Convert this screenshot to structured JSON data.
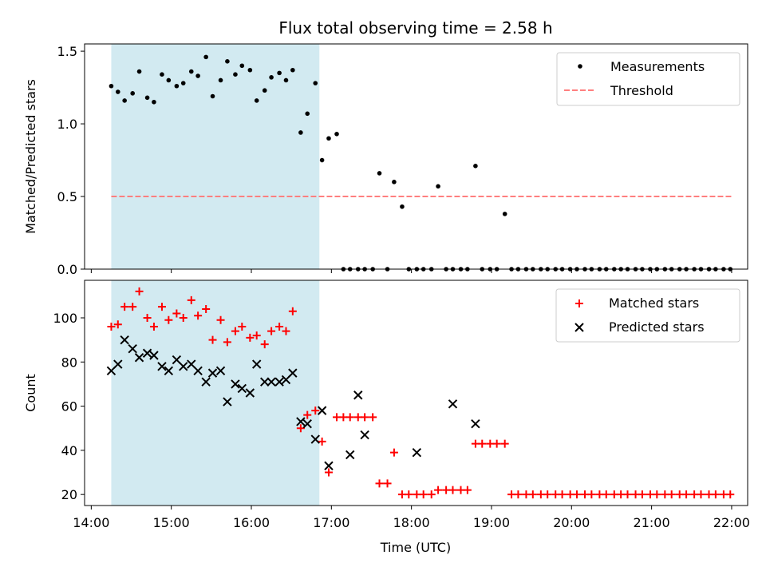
{
  "chart_data": {
    "title": "Flux total observing time = 2.58 h",
    "shaded_region": {
      "x": [
        "14:15",
        "16:51"
      ],
      "color": "#add8e6"
    },
    "xlabel": "Time (UTC)",
    "xlim": [
      "13:55",
      "22:12"
    ],
    "xticks": [
      "14:00",
      "15:00",
      "16:00",
      "17:00",
      "18:00",
      "19:00",
      "20:00",
      "21:00",
      "22:00"
    ],
    "top": {
      "type": "scatter",
      "ylabel": "Matched/Predicted stars",
      "ylim": [
        0,
        1.55
      ],
      "yticks": [
        "0.0",
        "0.5",
        "1.0",
        "1.5"
      ],
      "legend": {
        "placement": "top-right",
        "entries": [
          "Measurements",
          "Threshold"
        ]
      },
      "threshold": {
        "name": "Threshold",
        "y": 0.5,
        "x": [
          "14:15",
          "22:00"
        ],
        "color": "#ff7f7f"
      },
      "measurements": {
        "name": "Measurements",
        "color": "#000000",
        "x": [
          "14:15",
          "14:20",
          "14:25",
          "14:31",
          "14:36",
          "14:42",
          "14:47",
          "14:53",
          "14:58",
          "15:04",
          "15:09",
          "15:15",
          "15:20",
          "15:26",
          "15:31",
          "15:37",
          "15:42",
          "15:48",
          "15:53",
          "15:59",
          "16:04",
          "16:10",
          "16:15",
          "16:21",
          "16:26",
          "16:31",
          "16:37",
          "16:42",
          "16:48",
          "16:53",
          "16:58",
          "17:04",
          "17:09",
          "17:14",
          "17:20",
          "17:25",
          "17:31",
          "17:36",
          "17:42",
          "17:47",
          "17:53",
          "17:58",
          "18:04",
          "18:09",
          "18:15",
          "18:20",
          "18:26",
          "18:31",
          "18:37",
          "18:42",
          "18:48",
          "18:53",
          "18:59",
          "19:04",
          "19:10",
          "19:15",
          "19:20",
          "19:26",
          "19:31",
          "19:37",
          "19:42",
          "19:48",
          "19:53",
          "19:59",
          "20:04",
          "20:10",
          "20:15",
          "20:21",
          "20:26",
          "20:32",
          "20:37",
          "20:42",
          "20:48",
          "20:53",
          "20:59",
          "21:04",
          "21:10",
          "21:15",
          "21:21",
          "21:26",
          "21:32",
          "21:37",
          "21:43",
          "21:48",
          "21:54",
          "21:59"
        ],
        "y": [
          1.26,
          1.22,
          1.16,
          1.21,
          1.36,
          1.18,
          1.15,
          1.34,
          1.3,
          1.26,
          1.28,
          1.36,
          1.33,
          1.46,
          1.19,
          1.3,
          1.43,
          1.34,
          1.4,
          1.37,
          1.16,
          1.23,
          1.32,
          1.35,
          1.3,
          1.37,
          0.94,
          1.07,
          1.28,
          0.75,
          0.9,
          0.93,
          0,
          0,
          0,
          0,
          0,
          0.66,
          0,
          0.6,
          0.43,
          0,
          0,
          0,
          0,
          0.57,
          0,
          0,
          0,
          0,
          0.71,
          0,
          0,
          0,
          0.38,
          0,
          0,
          0,
          0,
          0,
          0,
          0,
          0,
          0,
          0,
          0,
          0,
          0,
          0,
          0,
          0,
          0,
          0,
          0,
          0,
          0,
          0,
          0,
          0,
          0,
          0,
          0,
          0,
          0,
          0,
          0
        ]
      }
    },
    "bottom": {
      "type": "scatter",
      "ylabel": "Count",
      "ylim": [
        15,
        117
      ],
      "yticks": [
        "20",
        "40",
        "60",
        "80",
        "100"
      ],
      "legend": {
        "placement": "top-right",
        "entries": [
          "Matched stars",
          "Predicted stars"
        ]
      },
      "matched": {
        "name": "Matched stars",
        "color": "#ff0000",
        "x": [
          "14:15",
          "14:20",
          "14:25",
          "14:31",
          "14:36",
          "14:42",
          "14:47",
          "14:53",
          "14:58",
          "15:04",
          "15:09",
          "15:15",
          "15:20",
          "15:26",
          "15:31",
          "15:37",
          "15:42",
          "15:48",
          "15:53",
          "15:59",
          "16:04",
          "16:10",
          "16:15",
          "16:21",
          "16:26",
          "16:31",
          "16:37",
          "16:42",
          "16:48",
          "16:53",
          "16:58",
          "17:04",
          "17:09",
          "17:14",
          "17:20",
          "17:25",
          "17:31",
          "17:36",
          "17:42",
          "17:47",
          "17:53",
          "17:58",
          "18:04",
          "18:09",
          "18:15",
          "18:20",
          "18:26",
          "18:31",
          "18:37",
          "18:42",
          "18:48",
          "18:53",
          "18:59",
          "19:04",
          "19:10",
          "19:15",
          "19:20",
          "19:26",
          "19:31",
          "19:37",
          "19:42",
          "19:48",
          "19:53",
          "19:59",
          "20:04",
          "20:10",
          "20:15",
          "20:21",
          "20:26",
          "20:32",
          "20:37",
          "20:42",
          "20:48",
          "20:53",
          "20:59",
          "21:04",
          "21:10",
          "21:15",
          "21:21",
          "21:26",
          "21:32",
          "21:37",
          "21:43",
          "21:48",
          "21:54",
          "21:59"
        ],
        "y": [
          96,
          97,
          105,
          105,
          112,
          100,
          96,
          105,
          99,
          102,
          100,
          108,
          101,
          104,
          90,
          99,
          89,
          94,
          96,
          91,
          92,
          88,
          94,
          96,
          94,
          103,
          50,
          56,
          58,
          44,
          30,
          55,
          55,
          55,
          55,
          55,
          55,
          25,
          25,
          39,
          20,
          20,
          20,
          20,
          20,
          22,
          22,
          22,
          22,
          22,
          43,
          43,
          43,
          43,
          43,
          20,
          20,
          20,
          20,
          20,
          20,
          20,
          20,
          20,
          20,
          20,
          20,
          20,
          20,
          20,
          20,
          20,
          20,
          20,
          20,
          20,
          20,
          20,
          20,
          20,
          20,
          20,
          20,
          20,
          20,
          20
        ]
      },
      "predicted": {
        "name": "Predicted stars",
        "color": "#000000",
        "x": [
          "14:15",
          "14:20",
          "14:25",
          "14:31",
          "14:36",
          "14:42",
          "14:47",
          "14:53",
          "14:58",
          "15:04",
          "15:09",
          "15:15",
          "15:20",
          "15:26",
          "15:31",
          "15:37",
          "15:42",
          "15:48",
          "15:53",
          "15:59",
          "16:04",
          "16:10",
          "16:15",
          "16:21",
          "16:26",
          "16:31",
          "16:37",
          "16:42",
          "16:48",
          "16:53",
          "16:58",
          "17:14",
          "17:20",
          "17:25",
          "18:04",
          "18:31",
          "18:48"
        ],
        "y": [
          76,
          79,
          90,
          86,
          82,
          84,
          83,
          78,
          76,
          81,
          78,
          79,
          76,
          71,
          75,
          76,
          62,
          70,
          68,
          66,
          79,
          71,
          71,
          71,
          72,
          75,
          53,
          52,
          45,
          58,
          33,
          38,
          65,
          47,
          39,
          61,
          52
        ]
      }
    }
  }
}
